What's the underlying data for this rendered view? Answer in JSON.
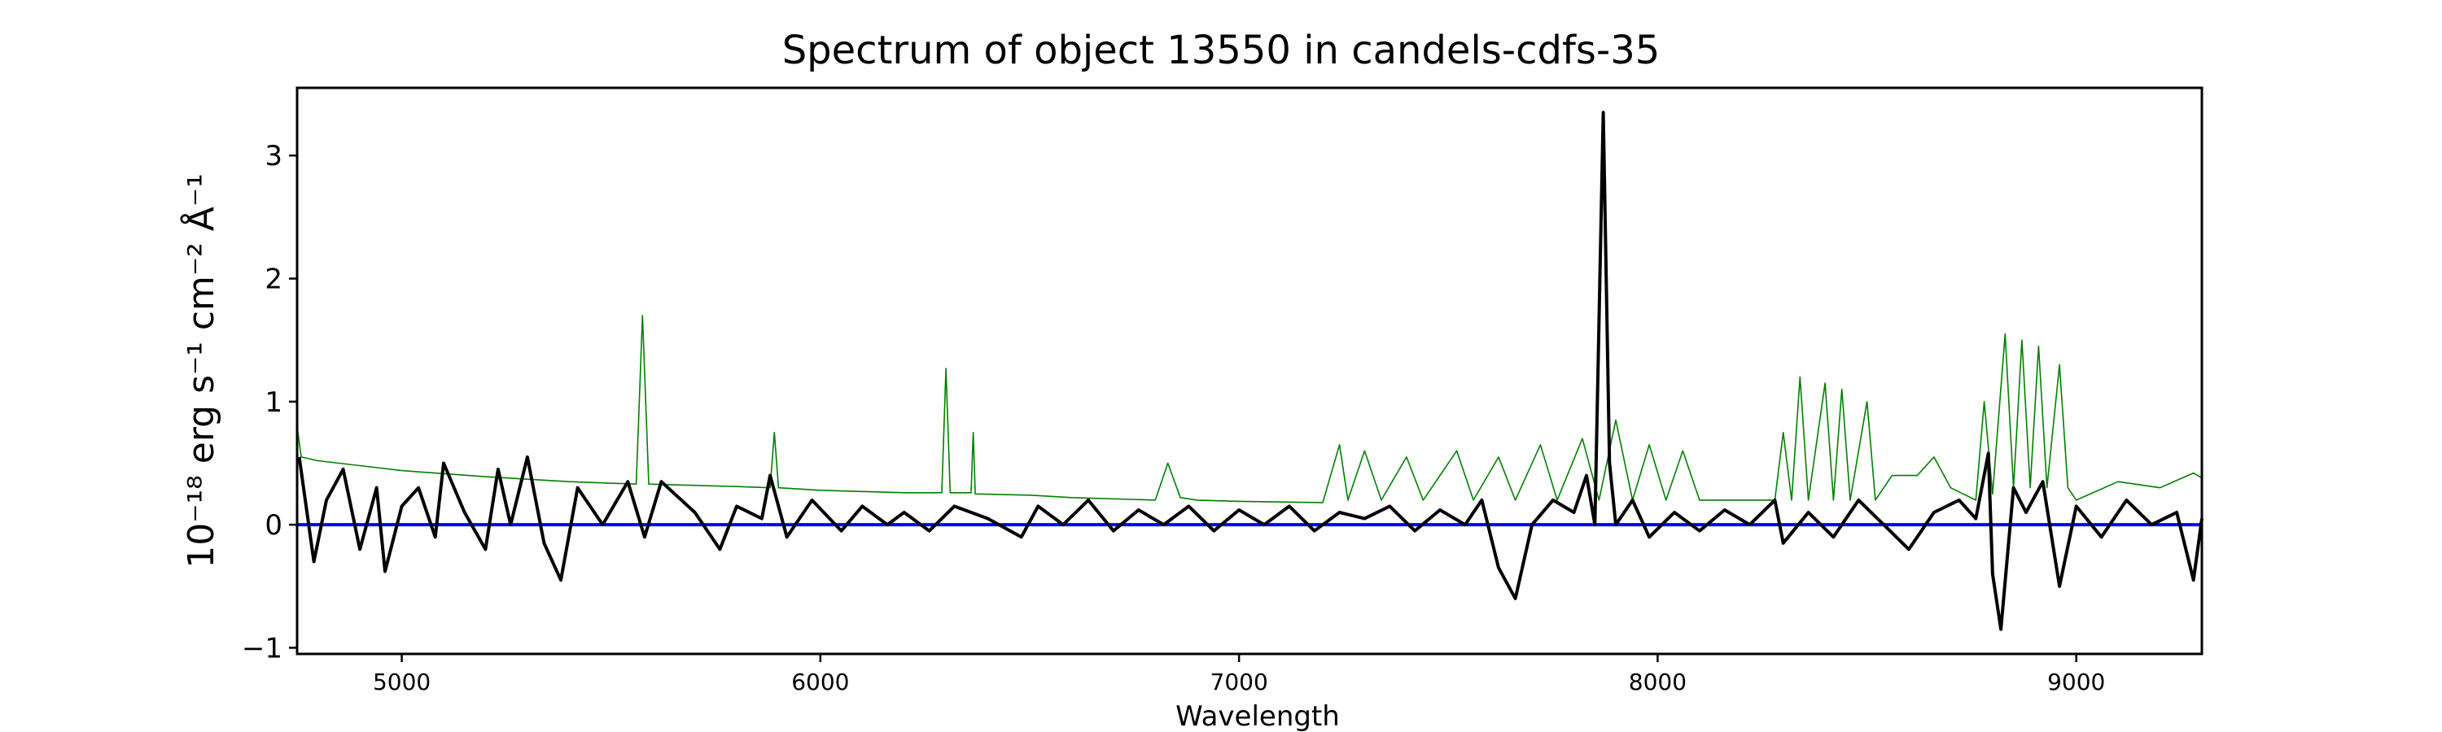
{
  "chart_data": {
    "type": "line",
    "title": "Spectrum of object 13550 in candels-cdfs-35",
    "xlabel": "Wavelength",
    "ylabel": "10⁻¹⁸ erg s⁻¹ cm⁻² Å⁻¹",
    "xlim": [
      4750,
      9300
    ],
    "ylim": [
      -1.05,
      3.55
    ],
    "xticks": [
      5000,
      6000,
      7000,
      8000,
      9000
    ],
    "yticks": [
      -1,
      0,
      1,
      2,
      3
    ],
    "ytick_labels": [
      "−1",
      "0",
      "1",
      "2",
      "3"
    ],
    "grid": false,
    "legend": "none",
    "colors": {
      "spectrum": "#000000",
      "continuum": "#0000ff",
      "noise": "#008000"
    },
    "series": [
      {
        "key": "spectrum",
        "style": "thick",
        "points": [
          [
            4755,
            0.55
          ],
          [
            4790,
            -0.3
          ],
          [
            4820,
            0.2
          ],
          [
            4860,
            0.45
          ],
          [
            4900,
            -0.2
          ],
          [
            4940,
            0.3
          ],
          [
            4960,
            -0.38
          ],
          [
            5000,
            0.15
          ],
          [
            5040,
            0.3
          ],
          [
            5080,
            -0.1
          ],
          [
            5100,
            0.5
          ],
          [
            5150,
            0.1
          ],
          [
            5200,
            -0.2
          ],
          [
            5230,
            0.45
          ],
          [
            5260,
            0.0
          ],
          [
            5300,
            0.55
          ],
          [
            5340,
            -0.15
          ],
          [
            5380,
            -0.45
          ],
          [
            5420,
            0.3
          ],
          [
            5480,
            0.0
          ],
          [
            5540,
            0.35
          ],
          [
            5580,
            -0.1
          ],
          [
            5620,
            0.35
          ],
          [
            5700,
            0.1
          ],
          [
            5760,
            -0.2
          ],
          [
            5800,
            0.15
          ],
          [
            5860,
            0.05
          ],
          [
            5880,
            0.4
          ],
          [
            5920,
            -0.1
          ],
          [
            5980,
            0.2
          ],
          [
            6050,
            -0.05
          ],
          [
            6100,
            0.15
          ],
          [
            6160,
            0.0
          ],
          [
            6200,
            0.1
          ],
          [
            6260,
            -0.05
          ],
          [
            6320,
            0.15
          ],
          [
            6400,
            0.05
          ],
          [
            6480,
            -0.1
          ],
          [
            6520,
            0.15
          ],
          [
            6580,
            0.0
          ],
          [
            6640,
            0.2
          ],
          [
            6700,
            -0.05
          ],
          [
            6760,
            0.12
          ],
          [
            6820,
            0.0
          ],
          [
            6880,
            0.15
          ],
          [
            6940,
            -0.05
          ],
          [
            7000,
            0.12
          ],
          [
            7060,
            0.0
          ],
          [
            7120,
            0.15
          ],
          [
            7180,
            -0.05
          ],
          [
            7240,
            0.1
          ],
          [
            7300,
            0.05
          ],
          [
            7360,
            0.15
          ],
          [
            7420,
            -0.05
          ],
          [
            7480,
            0.12
          ],
          [
            7540,
            0.0
          ],
          [
            7580,
            0.2
          ],
          [
            7620,
            -0.35
          ],
          [
            7660,
            -0.6
          ],
          [
            7700,
            0.0
          ],
          [
            7750,
            0.2
          ],
          [
            7800,
            0.1
          ],
          [
            7830,
            0.4
          ],
          [
            7850,
            0.0
          ],
          [
            7870,
            3.35
          ],
          [
            7885,
            0.5
          ],
          [
            7900,
            0.0
          ],
          [
            7940,
            0.2
          ],
          [
            7980,
            -0.1
          ],
          [
            8040,
            0.1
          ],
          [
            8100,
            -0.05
          ],
          [
            8160,
            0.12
          ],
          [
            8220,
            0.0
          ],
          [
            8280,
            0.2
          ],
          [
            8300,
            -0.15
          ],
          [
            8360,
            0.1
          ],
          [
            8420,
            -0.1
          ],
          [
            8480,
            0.2
          ],
          [
            8540,
            0.0
          ],
          [
            8600,
            -0.2
          ],
          [
            8660,
            0.1
          ],
          [
            8720,
            0.2
          ],
          [
            8760,
            0.05
          ],
          [
            8790,
            0.58
          ],
          [
            8800,
            -0.4
          ],
          [
            8820,
            -0.85
          ],
          [
            8850,
            0.3
          ],
          [
            8880,
            0.1
          ],
          [
            8920,
            0.35
          ],
          [
            8960,
            -0.5
          ],
          [
            9000,
            0.15
          ],
          [
            9060,
            -0.1
          ],
          [
            9120,
            0.2
          ],
          [
            9180,
            0.0
          ],
          [
            9240,
            0.1
          ],
          [
            9280,
            -0.45
          ],
          [
            9300,
            0.05
          ]
        ]
      },
      {
        "key": "noise",
        "style": "thin",
        "points": [
          [
            4750,
            0.8
          ],
          [
            4760,
            0.55
          ],
          [
            4800,
            0.52
          ],
          [
            4900,
            0.48
          ],
          [
            5000,
            0.44
          ],
          [
            5200,
            0.39
          ],
          [
            5400,
            0.35
          ],
          [
            5560,
            0.33
          ],
          [
            5575,
            1.7
          ],
          [
            5590,
            0.33
          ],
          [
            5800,
            0.31
          ],
          [
            5880,
            0.3
          ],
          [
            5890,
            0.75
          ],
          [
            5900,
            0.3
          ],
          [
            6000,
            0.28
          ],
          [
            6200,
            0.26
          ],
          [
            6290,
            0.26
          ],
          [
            6300,
            1.27
          ],
          [
            6310,
            0.26
          ],
          [
            6360,
            0.26
          ],
          [
            6365,
            0.75
          ],
          [
            6370,
            0.25
          ],
          [
            6500,
            0.24
          ],
          [
            6600,
            0.22
          ],
          [
            6800,
            0.2
          ],
          [
            6830,
            0.5
          ],
          [
            6860,
            0.22
          ],
          [
            6900,
            0.2
          ],
          [
            7000,
            0.19
          ],
          [
            7200,
            0.18
          ],
          [
            7240,
            0.65
          ],
          [
            7260,
            0.2
          ],
          [
            7300,
            0.6
          ],
          [
            7340,
            0.2
          ],
          [
            7400,
            0.55
          ],
          [
            7440,
            0.2
          ],
          [
            7520,
            0.6
          ],
          [
            7560,
            0.2
          ],
          [
            7620,
            0.55
          ],
          [
            7660,
            0.2
          ],
          [
            7720,
            0.65
          ],
          [
            7760,
            0.2
          ],
          [
            7820,
            0.7
          ],
          [
            7860,
            0.2
          ],
          [
            7900,
            0.85
          ],
          [
            7940,
            0.2
          ],
          [
            7980,
            0.65
          ],
          [
            8020,
            0.2
          ],
          [
            8060,
            0.6
          ],
          [
            8100,
            0.2
          ],
          [
            8200,
            0.2
          ],
          [
            8280,
            0.2
          ],
          [
            8300,
            0.75
          ],
          [
            8320,
            0.2
          ],
          [
            8340,
            1.2
          ],
          [
            8360,
            0.2
          ],
          [
            8400,
            1.15
          ],
          [
            8420,
            0.2
          ],
          [
            8440,
            1.1
          ],
          [
            8460,
            0.2
          ],
          [
            8500,
            1.0
          ],
          [
            8520,
            0.2
          ],
          [
            8560,
            0.4
          ],
          [
            8620,
            0.4
          ],
          [
            8660,
            0.55
          ],
          [
            8700,
            0.3
          ],
          [
            8760,
            0.2
          ],
          [
            8780,
            1.0
          ],
          [
            8800,
            0.25
          ],
          [
            8830,
            1.55
          ],
          [
            8850,
            0.3
          ],
          [
            8870,
            1.5
          ],
          [
            8890,
            0.3
          ],
          [
            8910,
            1.45
          ],
          [
            8930,
            0.3
          ],
          [
            8960,
            1.3
          ],
          [
            8980,
            0.3
          ],
          [
            9000,
            0.2
          ],
          [
            9100,
            0.35
          ],
          [
            9200,
            0.3
          ],
          [
            9280,
            0.42
          ],
          [
            9300,
            0.38
          ]
        ]
      },
      {
        "key": "continuum",
        "style": "flat",
        "points": [
          [
            4750,
            0.0
          ],
          [
            9300,
            0.0
          ]
        ]
      }
    ]
  }
}
